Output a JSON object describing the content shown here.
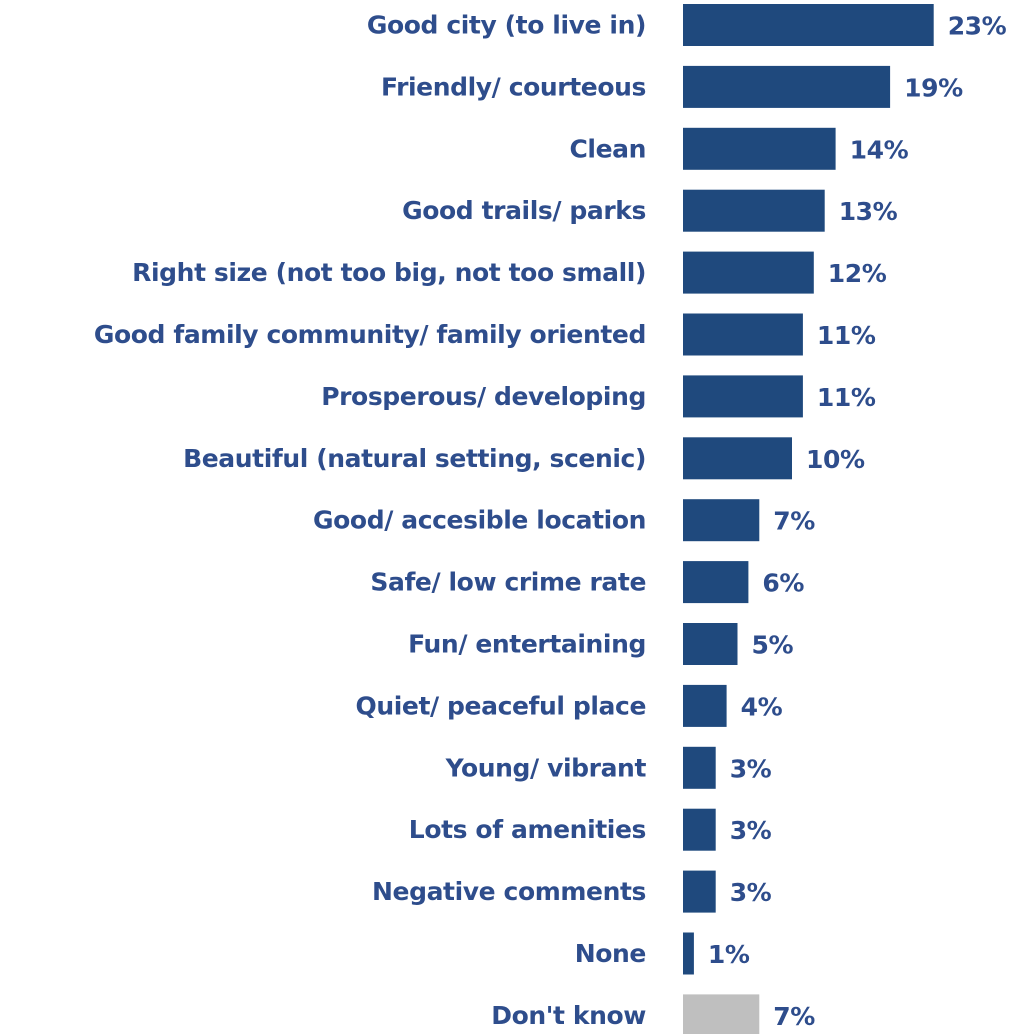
{
  "chart_data": {
    "type": "bar",
    "orientation": "horizontal",
    "categories": [
      "Good city (to live in)",
      "Friendly/ courteous",
      "Clean",
      "Good trails/ parks",
      "Right size (not too big, not too small)",
      "Good family community/ family oriented",
      "Prosperous/ developing",
      "Beautiful (natural setting, scenic)",
      "Good/ accesible location",
      "Safe/ low crime rate",
      "Fun/ entertaining",
      "Quiet/ peaceful place",
      "Young/ vibrant",
      "Lots of amenities",
      "Negative comments",
      "None",
      "Don't know"
    ],
    "values": [
      23,
      19,
      14,
      13,
      12,
      11,
      11,
      10,
      7,
      6,
      5,
      4,
      3,
      3,
      3,
      1,
      7
    ],
    "value_labels": [
      "23%",
      "19%",
      "14%",
      "13%",
      "12%",
      "11%",
      "11%",
      "10%",
      "7%",
      "6%",
      "5%",
      "4%",
      "3%",
      "3%",
      "3%",
      "1%",
      "7%"
    ],
    "unit": "%",
    "title": "",
    "xlabel": "",
    "ylabel": "",
    "grid": false,
    "legend": "none",
    "colors": {
      "bar": "#1F497D",
      "bar_dont_know": "#BFBFBF",
      "text": "#2E4D8C"
    }
  }
}
